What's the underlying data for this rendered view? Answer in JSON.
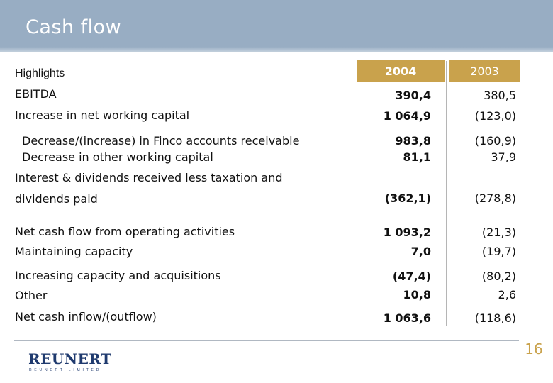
{
  "slide": {
    "title": "Cash flow",
    "section": "Highlights",
    "page_number": "16"
  },
  "columns": {
    "year_a": "2004",
    "year_b": "2003"
  },
  "rows": [
    {
      "label": "EBITDA",
      "v2004": "390,4",
      "v2003": "380,5"
    },
    {
      "label": "Increase in net working capital",
      "v2004": "1 064,9",
      "v2003": "(123,0)"
    },
    {
      "label": "Decrease/(increase) in Finco accounts receivable",
      "v2004": "983,8",
      "v2003": "(160,9)"
    },
    {
      "label": "Decrease in other working capital",
      "v2004": "81,1",
      "v2003": "37,9"
    },
    {
      "label": "Interest & dividends received less taxation and",
      "v2004": "",
      "v2003": ""
    },
    {
      "label": "dividends paid",
      "v2004": "(362,1)",
      "v2003": "(278,8)"
    },
    {
      "label": "Net cash flow from operating activities",
      "v2004": "1 093,2",
      "v2003": "(21,3)"
    },
    {
      "label": "Maintaining capacity",
      "v2004": "7,0",
      "v2003": "(19,7)"
    },
    {
      "label": "Increasing capacity and acquisitions",
      "v2004": "(47,4)",
      "v2003": "(80,2)"
    },
    {
      "label": "Other",
      "v2004": "10,8",
      "v2003": "2,6"
    },
    {
      "label": "Net cash inflow/(outflow)",
      "v2004": "1 063,6",
      "v2003": "(118,6)"
    }
  ],
  "logo": {
    "name": "REUNERT",
    "subtitle": "REUNERT LIMITED"
  },
  "colors": {
    "banner": "#98adc3",
    "header_gold": "#c9a24c",
    "logo_blue": "#1f3a6e"
  }
}
